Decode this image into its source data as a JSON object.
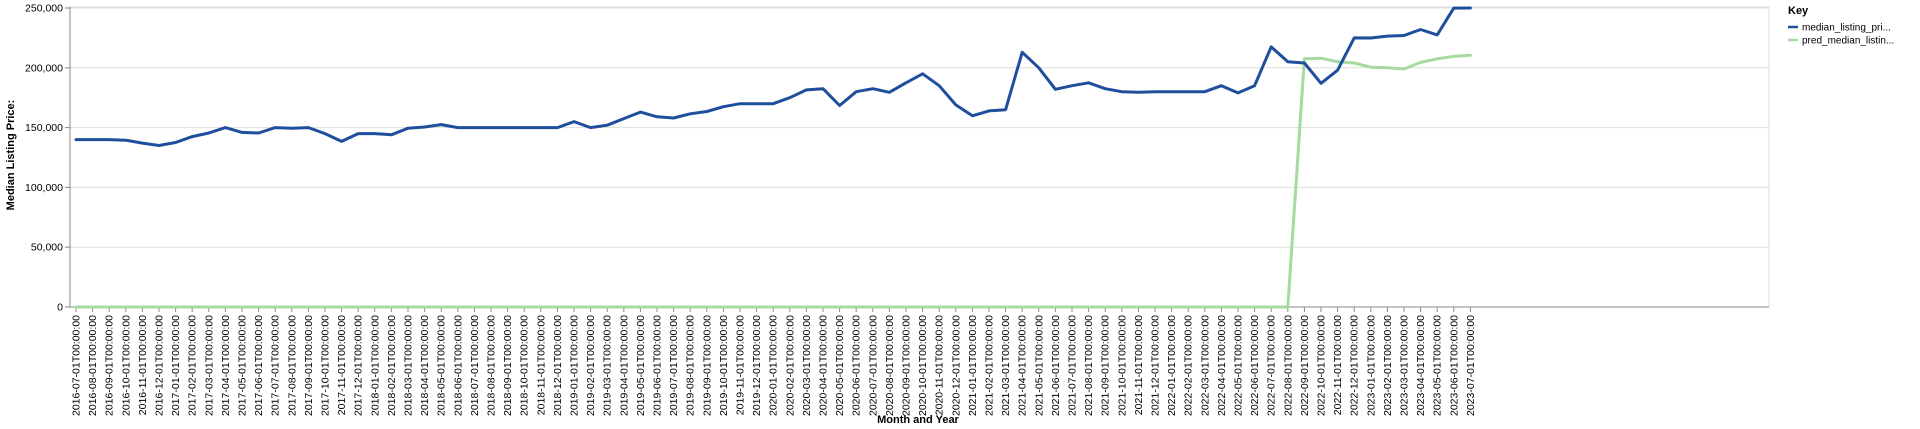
{
  "chart_data": {
    "type": "line",
    "xlabel": "Month and Year",
    "ylabel": "Median Listing Price:",
    "ylim": [
      0,
      250000
    ],
    "y_ticks": [
      "0",
      "50,000",
      "100,000",
      "150,000",
      "200,000",
      "250,000"
    ],
    "y_tick_values": [
      0,
      50000,
      100000,
      150000,
      200000,
      250000
    ],
    "grid": true,
    "legend_position": "top-right",
    "legend_title": "Key",
    "categories": [
      "2016-07-01T00:00:00",
      "2016-08-01T00:00:00",
      "2016-09-01T00:00:00",
      "2016-10-01T00:00:00",
      "2016-11-01T00:00:00",
      "2016-12-01T00:00:00",
      "2017-01-01T00:00:00",
      "2017-02-01T00:00:00",
      "2017-03-01T00:00:00",
      "2017-04-01T00:00:00",
      "2017-05-01T00:00:00",
      "2017-06-01T00:00:00",
      "2017-07-01T00:00:00",
      "2017-08-01T00:00:00",
      "2017-09-01T00:00:00",
      "2017-10-01T00:00:00",
      "2017-11-01T00:00:00",
      "2017-12-01T00:00:00",
      "2018-01-01T00:00:00",
      "2018-02-01T00:00:00",
      "2018-03-01T00:00:00",
      "2018-04-01T00:00:00",
      "2018-05-01T00:00:00",
      "2018-06-01T00:00:00",
      "2018-07-01T00:00:00",
      "2018-08-01T00:00:00",
      "2018-09-01T00:00:00",
      "2018-10-01T00:00:00",
      "2018-11-01T00:00:00",
      "2018-12-01T00:00:00",
      "2019-01-01T00:00:00",
      "2019-02-01T00:00:00",
      "2019-03-01T00:00:00",
      "2019-04-01T00:00:00",
      "2019-05-01T00:00:00",
      "2019-06-01T00:00:00",
      "2019-07-01T00:00:00",
      "2019-08-01T00:00:00",
      "2019-09-01T00:00:00",
      "2019-10-01T00:00:00",
      "2019-11-01T00:00:00",
      "2019-12-01T00:00:00",
      "2020-01-01T00:00:00",
      "2020-02-01T00:00:00",
      "2020-03-01T00:00:00",
      "2020-04-01T00:00:00",
      "2020-05-01T00:00:00",
      "2020-06-01T00:00:00",
      "2020-07-01T00:00:00",
      "2020-08-01T00:00:00",
      "2020-09-01T00:00:00",
      "2020-10-01T00:00:00",
      "2020-11-01T00:00:00",
      "2020-12-01T00:00:00",
      "2021-01-01T00:00:00",
      "2021-02-01T00:00:00",
      "2021-03-01T00:00:00",
      "2021-04-01T00:00:00",
      "2021-05-01T00:00:00",
      "2021-06-01T00:00:00",
      "2021-07-01T00:00:00",
      "2021-08-01T00:00:00",
      "2021-09-01T00:00:00",
      "2021-10-01T00:00:00",
      "2021-11-01T00:00:00",
      "2021-12-01T00:00:00",
      "2022-01-01T00:00:00",
      "2022-02-01T00:00:00",
      "2022-03-01T00:00:00",
      "2022-04-01T00:00:00",
      "2022-05-01T00:00:00",
      "2022-06-01T00:00:00",
      "2022-07-01T00:00:00",
      "2022-08-01T00:00:00",
      "2022-09-01T00:00:00",
      "2022-10-01T00:00:00",
      "2022-11-01T00:00:00",
      "2022-12-01T00:00:00",
      "2023-01-01T00:00:00",
      "2023-02-01T00:00:00",
      "2023-03-01T00:00:00",
      "2023-04-01T00:00:00",
      "2023-05-01T00:00:00",
      "2023-06-01T00:00:00",
      "2023-07-01T00:00:00"
    ],
    "series": [
      {
        "name": "median_listing_pri...",
        "color": "#1f4e9c",
        "values": [
          140000,
          140000,
          140000,
          139500,
          137000,
          135000,
          137500,
          142500,
          145500,
          150000,
          146000,
          145500,
          150000,
          149500,
          150000,
          145000,
          138500,
          145000,
          145000,
          144000,
          149500,
          150500,
          152500,
          150000,
          150000,
          150000,
          150000,
          150000,
          150000,
          150000,
          155000,
          150000,
          152000,
          157500,
          163000,
          159000,
          158000,
          161500,
          163500,
          167500,
          170000,
          170000,
          170000,
          175000,
          181500,
          182500,
          168500,
          180000,
          182500,
          179500,
          187500,
          195000,
          185000,
          169000,
          159900,
          164000,
          165000,
          213000,
          200000,
          182000,
          185000,
          187500,
          182500,
          180000,
          179500,
          180000,
          180000,
          180000,
          180000,
          185000,
          179000,
          185000,
          217500,
          205000,
          204000,
          187000,
          198000,
          225000,
          224900,
          226500,
          227000,
          232000,
          227500,
          249900,
          250000
        ]
      },
      {
        "name": "pred_median_listin...",
        "color": "#a6dba0",
        "values": [
          0,
          0,
          0,
          0,
          0,
          0,
          0,
          0,
          0,
          0,
          0,
          0,
          0,
          0,
          0,
          0,
          0,
          0,
          0,
          0,
          0,
          0,
          0,
          0,
          0,
          0,
          0,
          0,
          0,
          0,
          0,
          0,
          0,
          0,
          0,
          0,
          0,
          0,
          0,
          0,
          0,
          0,
          0,
          0,
          0,
          0,
          0,
          0,
          0,
          0,
          0,
          0,
          0,
          0,
          0,
          0,
          0,
          0,
          0,
          0,
          0,
          0,
          0,
          0,
          0,
          0,
          0,
          0,
          0,
          0,
          0,
          0,
          0,
          0,
          207500,
          208000,
          205000,
          204000,
          200500,
          200000,
          199000,
          204500,
          207500,
          209500,
          210500
        ]
      }
    ]
  }
}
